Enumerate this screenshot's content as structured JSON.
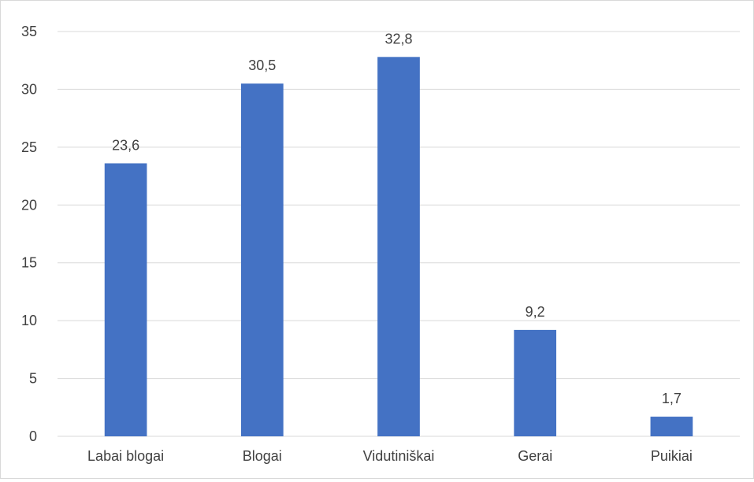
{
  "chart_data": {
    "type": "bar",
    "categories": [
      "Labai blogai",
      "Blogai",
      "Vidutiniškai",
      "Gerai",
      "Puikiai"
    ],
    "values": [
      23.6,
      30.5,
      32.8,
      9.2,
      1.7
    ],
    "value_labels": [
      "23,6",
      "30,5",
      "32,8",
      "9,2",
      "1,7"
    ],
    "title": "",
    "xlabel": "",
    "ylabel": "",
    "ylim": [
      0,
      35
    ],
    "yticks": [
      0,
      5,
      10,
      15,
      20,
      25,
      30,
      35
    ],
    "ytick_labels": [
      "0",
      "5",
      "10",
      "15",
      "20",
      "25",
      "30",
      "35"
    ],
    "grid": true,
    "legend": "none",
    "bar_color": "#4472c4",
    "grid_color": "#d9d9d9"
  }
}
